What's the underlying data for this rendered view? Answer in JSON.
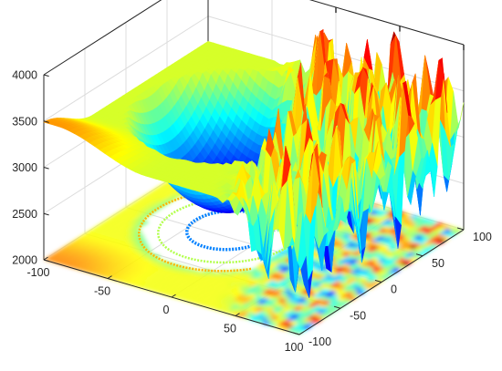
{
  "chart_data": {
    "type": "surface",
    "title": "",
    "xlabel": "",
    "ylabel": "",
    "zlabel": "",
    "x_ticks": [
      -100,
      -50,
      0,
      50,
      100
    ],
    "y_ticks": [
      -100,
      -50,
      0,
      50,
      100
    ],
    "z_ticks": [
      2000,
      2500,
      3000,
      3500,
      4000
    ],
    "xlim": [
      -100,
      100
    ],
    "ylim": [
      -100,
      100
    ],
    "zlim": [
      2000,
      4000
    ],
    "grid": true,
    "box": "on",
    "colormap": "jet",
    "projection": "contour",
    "surface_regions": {
      "bowl_center": [
        -25,
        10
      ],
      "bowl_min_z": 2250,
      "bowl_rim_z": 3100,
      "peaks_region": "x > 0",
      "peaks_max_z": 3950,
      "peaks_min_z": 2400
    },
    "colors": {
      "jet": [
        "#00008f",
        "#0000ff",
        "#0080ff",
        "#00ffff",
        "#80ff80",
        "#ffff00",
        "#ff8000",
        "#ff0000",
        "#800000"
      ],
      "axis": "#262626",
      "grid": "#dcdcdc",
      "background": "#ffffff"
    }
  }
}
